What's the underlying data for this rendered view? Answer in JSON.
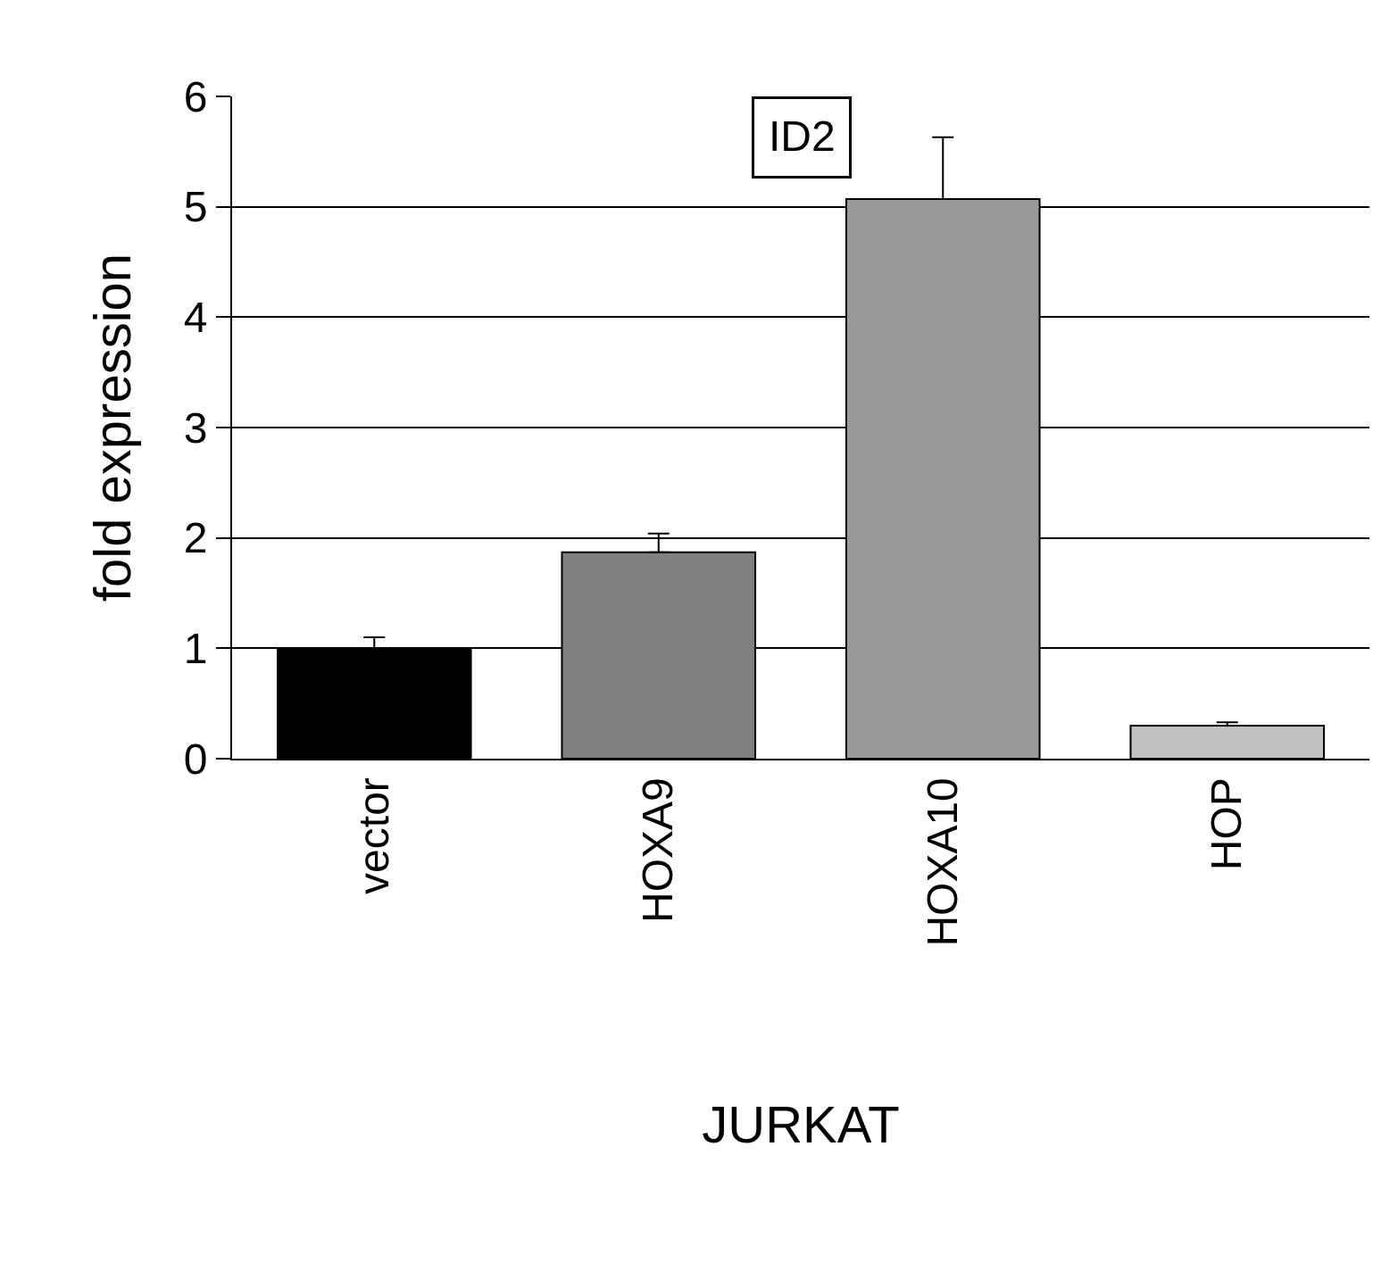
{
  "chart_data": {
    "type": "bar",
    "title": "ID2",
    "xlabel": "JURKAT",
    "ylabel": "fold expression",
    "categories": [
      "vector",
      "HOXA9",
      "HOXA10",
      "HOP"
    ],
    "values": [
      1.0,
      1.87,
      5.07,
      0.3
    ],
    "colors": [
      "#000000",
      "#808080",
      "#999999",
      "#c0c0c0"
    ],
    "errors": [
      [
        1.0,
        1.1
      ],
      [
        1.87,
        2.04
      ],
      [
        5.07,
        5.63
      ],
      [
        0.3,
        0.33
      ]
    ],
    "ylim": [
      0,
      6
    ],
    "yticks": [
      0,
      1,
      2,
      3,
      4,
      5,
      6
    ],
    "grid": "y",
    "legend": false
  }
}
